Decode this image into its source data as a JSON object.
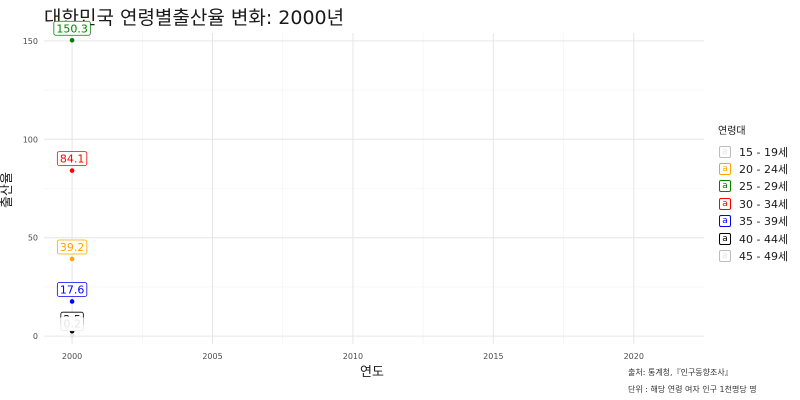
{
  "chart_data": {
    "type": "scatter",
    "title": "대한민국 연령별출산율 변화: 2000년",
    "xlabel": "연도",
    "ylabel": "출산율",
    "xlim": [
      1999.0,
      2022.5
    ],
    "ylim": [
      -4,
      154
    ],
    "x_ticks": [
      2000,
      2005,
      2010,
      2015,
      2020
    ],
    "y_ticks": [
      0,
      50,
      100,
      150
    ],
    "grid": true,
    "legend_title": "연령대",
    "legend_position": "right",
    "series": [
      {
        "name": "15 - 19세",
        "color": "#e6e6e6",
        "x": [
          2000
        ],
        "y": [
          2.5
        ],
        "label": "2.5"
      },
      {
        "name": "20 - 24세",
        "color": "#ffa500",
        "x": [
          2000
        ],
        "y": [
          39.2
        ],
        "label": "39.2"
      },
      {
        "name": "25 - 29세",
        "color": "#008000",
        "x": [
          2000
        ],
        "y": [
          150.3
        ],
        "label": "150.3"
      },
      {
        "name": "30 - 34세",
        "color": "#ff0000",
        "x": [
          2000
        ],
        "y": [
          84.1
        ],
        "label": "84.1"
      },
      {
        "name": "35 - 39세",
        "color": "#0000ff",
        "x": [
          2000
        ],
        "y": [
          17.6
        ],
        "label": "17.6"
      },
      {
        "name": "40 - 44세",
        "color": "#000000",
        "x": [
          2000
        ],
        "y": [
          2.5
        ],
        "label": "2.5"
      },
      {
        "name": "45 - 49세",
        "color": "#e6e6e6",
        "x": [
          2000
        ],
        "y": [
          0.2
        ],
        "label": "0.2"
      }
    ]
  },
  "legend_key_glyph": "a",
  "caption": {
    "source": "출처: 통계청,『인구동향조사』",
    "unit": "단위 : 해당 연령 여자 인구 1천명당 명"
  }
}
